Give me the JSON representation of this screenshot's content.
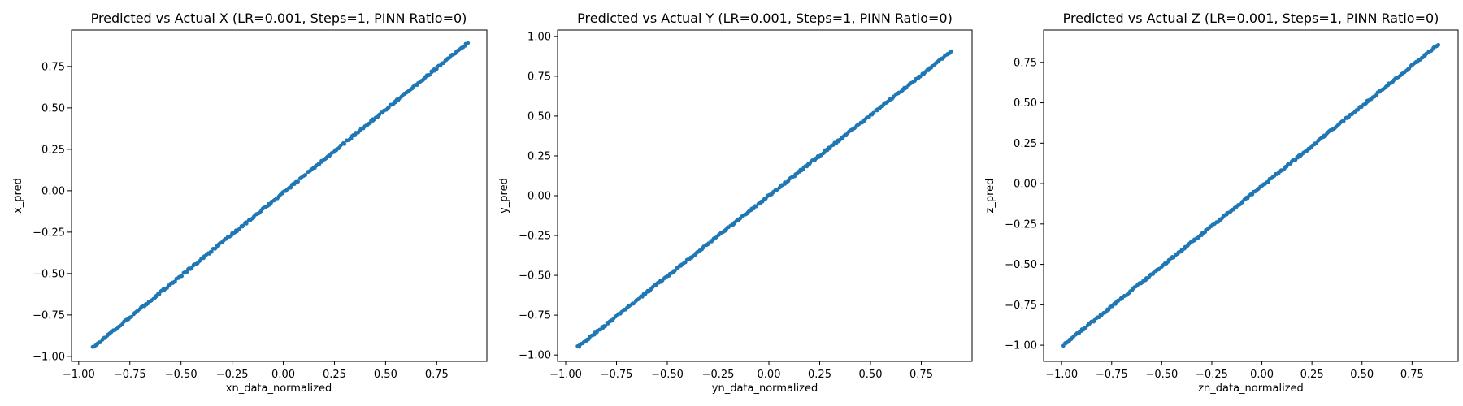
{
  "chart_data": [
    {
      "type": "scatter",
      "title": "Predicted vs Actual X (LR=0.001, Steps=1, PINN Ratio=0)",
      "xlabel": "xn_data_normalized",
      "ylabel": "x_pred",
      "xlim": [
        -1.035,
        0.995
      ],
      "ylim": [
        -1.03,
        0.97
      ],
      "xticks": [
        -1.0,
        -0.75,
        -0.5,
        -0.25,
        0.0,
        0.25,
        0.5,
        0.75
      ],
      "xtick_labels": [
        "−1.00",
        "−0.75",
        "−0.50",
        "−0.25",
        "0.00",
        "0.25",
        "0.50",
        "0.75"
      ],
      "yticks": [
        -1.0,
        -0.75,
        -0.5,
        -0.25,
        0.0,
        0.25,
        0.5,
        0.75
      ],
      "ytick_labels": [
        "−1.00",
        "−0.75",
        "−0.50",
        "−0.25",
        "0.00",
        "0.25",
        "0.50",
        "0.75"
      ],
      "x_range": [
        -0.93,
        0.9
      ],
      "slope": 1.003,
      "intercept": -0.012,
      "n_points": 300,
      "grid": false,
      "color": "#1f77b4"
    },
    {
      "type": "scatter",
      "title": "Predicted vs Actual Y (LR=0.001, Steps=1, PINN Ratio=0)",
      "xlabel": "yn_data_normalized",
      "ylabel": "y_pred",
      "xlim": [
        -1.04,
        1.0
      ],
      "ylim": [
        -1.04,
        1.04
      ],
      "xticks": [
        -1.0,
        -0.75,
        -0.5,
        -0.25,
        0.0,
        0.25,
        0.5,
        0.75
      ],
      "xtick_labels": [
        "−1.00",
        "−0.75",
        "−0.50",
        "−0.25",
        "0.00",
        "0.25",
        "0.50",
        "0.75"
      ],
      "yticks": [
        -1.0,
        -0.75,
        -0.5,
        -0.25,
        0.0,
        0.25,
        0.5,
        0.75,
        1.0
      ],
      "ytick_labels": [
        "−1.00",
        "−0.75",
        "−0.50",
        "−0.25",
        "0.00",
        "0.25",
        "0.50",
        "0.75",
        "1.00"
      ],
      "x_range": [
        -0.94,
        0.9
      ],
      "slope": 1.01,
      "intercept": 0.0,
      "n_points": 300,
      "grid": false,
      "color": "#1f77b4"
    },
    {
      "type": "scatter",
      "title": "Predicted vs Actual Z (LR=0.001, Steps=1, PINN Ratio=0)",
      "xlabel": "zn_data_normalized",
      "ylabel": "z_pred",
      "xlim": [
        -1.09,
        0.98
      ],
      "ylim": [
        -1.1,
        0.95
      ],
      "xticks": [
        -1.0,
        -0.75,
        -0.5,
        -0.25,
        0.0,
        0.25,
        0.5,
        0.75
      ],
      "xtick_labels": [
        "−1.00",
        "−0.75",
        "−0.50",
        "−0.25",
        "0.00",
        "0.25",
        "0.50",
        "0.75"
      ],
      "yticks": [
        -1.0,
        -0.75,
        -0.5,
        -0.25,
        0.0,
        0.25,
        0.5,
        0.75
      ],
      "ytick_labels": [
        "−1.00",
        "−0.75",
        "−0.50",
        "−0.25",
        "0.00",
        "0.25",
        "0.50",
        "0.75"
      ],
      "x_range": [
        -0.99,
        0.88
      ],
      "slope": 0.993,
      "intercept": -0.015,
      "n_points": 300,
      "grid": false,
      "color": "#1f77b4"
    }
  ]
}
